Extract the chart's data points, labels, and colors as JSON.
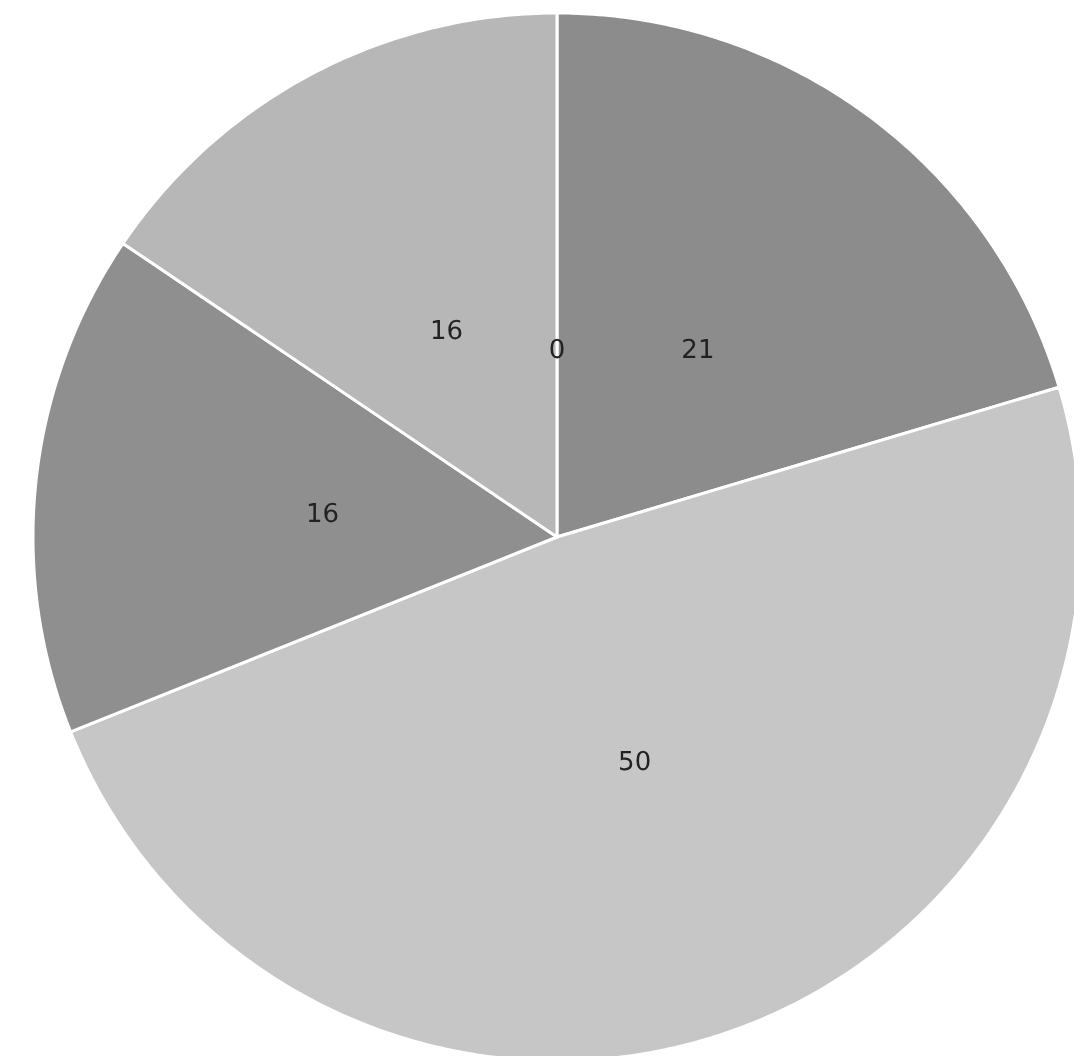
{
  "chart_data": {
    "type": "pie",
    "categories": [
      null,
      null,
      null,
      null,
      null
    ],
    "values": [
      0,
      21,
      50,
      16,
      16
    ],
    "colors": [
      "#9a9a9a",
      "#8c8c8c",
      "#c6c6c6",
      "#8f8f8f",
      "#b7b7b7"
    ],
    "value_labels": [
      "0",
      "21",
      "50",
      "16",
      "16"
    ]
  }
}
